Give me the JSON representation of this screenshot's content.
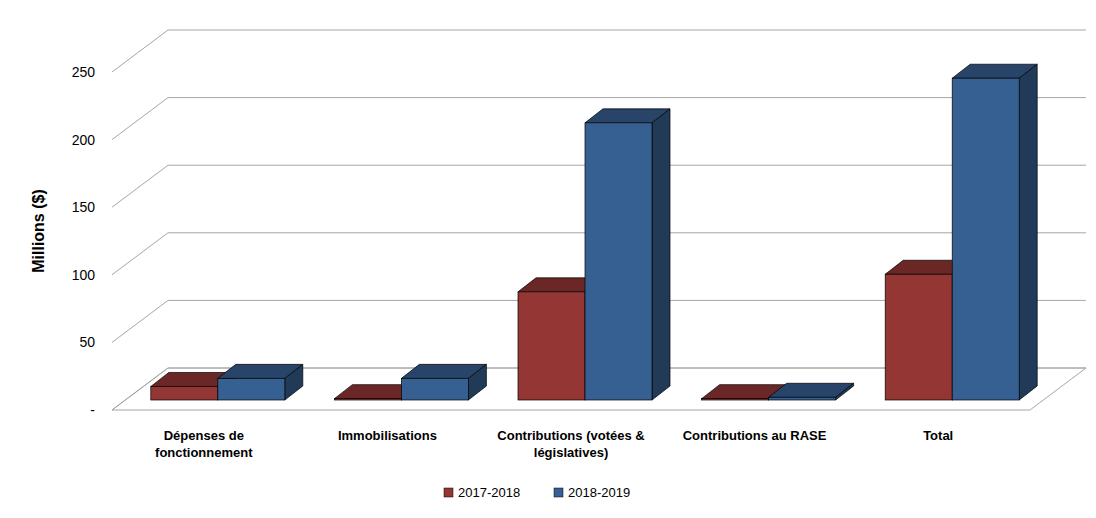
{
  "chart_data": {
    "type": "bar",
    "y_label": "Millions ($)",
    "categories": [
      "Dépenses de fonctionnement",
      "Immobilisations",
      "Contributions (votées & législatives)",
      "Contributions au RASE",
      "Total"
    ],
    "series": [
      {
        "name": "2017-2018",
        "color": "#943634",
        "values": [
          10,
          1,
          80,
          1,
          93
        ]
      },
      {
        "name": "2018-2019",
        "color": "#376092",
        "values": [
          16,
          16,
          205,
          2,
          238
        ]
      }
    ],
    "ylim": [
      0,
      250
    ],
    "yticks": [
      {
        "value": 0,
        "label": "-"
      },
      50,
      100,
      150,
      200,
      250
    ],
    "grid": true,
    "legend": "bottom"
  }
}
